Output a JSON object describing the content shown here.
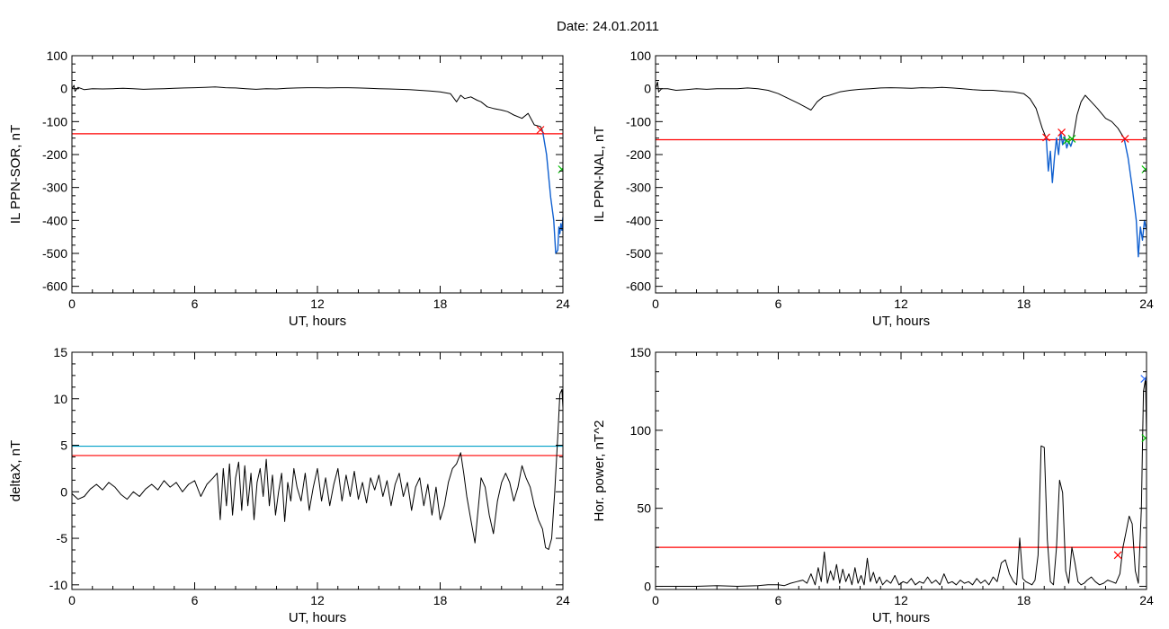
{
  "figure_title": "Date:  24.01.2011",
  "colors": {
    "trace": "#000000",
    "threshold_red": "#ff0000",
    "threshold_teal": "#00a0c8",
    "storm_blue": "#1060d0",
    "marker_red": "#ff0000",
    "marker_green": "#00c000",
    "marker_blue": "#3070ff"
  },
  "chart_data": [
    {
      "type": "line",
      "id": "sor",
      "title": "",
      "xlabel": "UT, hours",
      "ylabel": "IL PPN-SOR, nT",
      "xlim": [
        0,
        24
      ],
      "ylim": [
        -620,
        100
      ],
      "xticks": [
        0,
        6,
        12,
        18,
        24
      ],
      "yticks": [
        100,
        0,
        -100,
        -200,
        -300,
        -400,
        -500,
        -600
      ],
      "hlines": [
        {
          "y": -137,
          "color": "red"
        }
      ],
      "series": [
        {
          "x": [
            0,
            0.1,
            0.15,
            0.3,
            0.6,
            1,
            1.5,
            2,
            2.5,
            3,
            3.5,
            4,
            4.5,
            5,
            5.5,
            6,
            6.5,
            7,
            7.5,
            8,
            8.5,
            9,
            9.5,
            10,
            10.5,
            11,
            11.5,
            12,
            12.5,
            13,
            13.5,
            14,
            14.5,
            15,
            15.5,
            16,
            16.5,
            17,
            17.5,
            18,
            18.5,
            18.8,
            19,
            19.2,
            19.5,
            19.8,
            20,
            20.3,
            20.6,
            21,
            21.3,
            21.6,
            22,
            22.3,
            22.6,
            22.9,
            23.0
          ],
          "y": [
            0,
            10,
            -8,
            4,
            -3,
            0,
            -1,
            0,
            1,
            0,
            -2,
            -1,
            0,
            1,
            2,
            3,
            4,
            5,
            3,
            2,
            0,
            -2,
            0,
            -1,
            1,
            2,
            3,
            3,
            2,
            3,
            3,
            2,
            1,
            0,
            -1,
            -2,
            -3,
            -5,
            -7,
            -10,
            -15,
            -40,
            -20,
            -30,
            -25,
            -35,
            -40,
            -55,
            -60,
            -65,
            -70,
            -80,
            -90,
            -75,
            -110,
            -115,
            -127
          ],
          "color": "black"
        },
        {
          "x": [
            23.0,
            23.2,
            23.4,
            23.55,
            23.65,
            23.75,
            23.8,
            23.85,
            23.9,
            23.95,
            24.0
          ],
          "y": [
            -127,
            -200,
            -330,
            -400,
            -500,
            -490,
            -420,
            -440,
            -410,
            -430,
            -390
          ],
          "color": "blue"
        }
      ],
      "markers": [
        {
          "x": 22.9,
          "y": -125,
          "shape": "x",
          "color": "red"
        },
        {
          "x": 23.95,
          "y": -245,
          "shape": "x",
          "color": "green"
        }
      ]
    },
    {
      "type": "line",
      "id": "nal",
      "title": "",
      "xlabel": "UT, hours",
      "ylabel": "IL PPN-NAL, nT",
      "xlim": [
        0,
        24
      ],
      "ylim": [
        -620,
        100
      ],
      "xticks": [
        0,
        6,
        12,
        18,
        24
      ],
      "yticks": [
        100,
        0,
        -100,
        -200,
        -300,
        -400,
        -500,
        -600
      ],
      "hlines": [
        {
          "y": -155,
          "color": "red"
        }
      ],
      "series": [
        {
          "x": [
            0,
            0.1,
            0.15,
            0.3,
            0.6,
            1,
            1.5,
            2,
            2.5,
            3,
            3.5,
            4,
            4.5,
            5,
            5.5,
            6,
            6.5,
            7,
            7.3,
            7.6,
            7.9,
            8.2,
            8.5,
            9,
            9.5,
            10,
            10.5,
            11,
            11.5,
            12,
            12.5,
            13,
            13.5,
            14,
            14.5,
            15,
            15.5,
            16,
            16.5,
            17,
            17.5,
            18,
            18.3,
            18.6,
            18.9,
            19.1
          ],
          "y": [
            0,
            20,
            -10,
            0,
            0,
            -5,
            -3,
            0,
            -2,
            0,
            0,
            0,
            2,
            0,
            -5,
            -15,
            -30,
            -45,
            -55,
            -65,
            -40,
            -25,
            -20,
            -10,
            -5,
            -2,
            0,
            2,
            3,
            2,
            1,
            3,
            2,
            4,
            2,
            0,
            -3,
            -5,
            -5,
            -8,
            -10,
            -15,
            -30,
            -60,
            -120,
            -150
          ],
          "color": "black"
        },
        {
          "x": [
            19.1,
            19.2,
            19.3,
            19.4,
            19.5,
            19.6,
            19.7,
            19.8,
            19.9,
            20.0,
            20.1,
            20.2,
            20.3,
            20.4
          ],
          "y": [
            -150,
            -250,
            -190,
            -285,
            -210,
            -150,
            -200,
            -130,
            -170,
            -145,
            -180,
            -160,
            -175,
            -155
          ],
          "color": "blue"
        },
        {
          "x": [
            20.4,
            20.6,
            20.8,
            21,
            21.3,
            21.6,
            22,
            22.3,
            22.6,
            22.9
          ],
          "y": [
            -155,
            -80,
            -40,
            -20,
            -40,
            -60,
            -90,
            -100,
            -120,
            -150
          ],
          "color": "black"
        },
        {
          "x": [
            22.9,
            23.1,
            23.3,
            23.5,
            23.6,
            23.7,
            23.8,
            23.9,
            24.0
          ],
          "y": [
            -150,
            -210,
            -300,
            -400,
            -510,
            -420,
            -460,
            -400,
            -430
          ],
          "color": "blue"
        }
      ],
      "markers": [
        {
          "x": 19.1,
          "y": -148,
          "shape": "x",
          "color": "red"
        },
        {
          "x": 19.85,
          "y": -133,
          "shape": "x",
          "color": "red"
        },
        {
          "x": 20.1,
          "y": -158,
          "shape": "x",
          "color": "green"
        },
        {
          "x": 20.35,
          "y": -152,
          "shape": "x",
          "color": "green"
        },
        {
          "x": 22.95,
          "y": -152,
          "shape": "x",
          "color": "red"
        },
        {
          "x": 23.95,
          "y": -245,
          "shape": "x",
          "color": "green"
        }
      ]
    },
    {
      "type": "line",
      "id": "deltax",
      "title": "",
      "xlabel": "UT, hours",
      "ylabel": "deltaX, nT",
      "xlim": [
        0,
        24
      ],
      "ylim": [
        -10.5,
        15
      ],
      "xticks": [
        0,
        6,
        12,
        18,
        24
      ],
      "yticks": [
        15,
        10,
        5,
        0,
        -5,
        -10
      ],
      "hlines": [
        {
          "y": 4.9,
          "color": "teal"
        },
        {
          "y": 3.9,
          "color": "red"
        }
      ],
      "series": [
        {
          "x": [
            0,
            0.3,
            0.6,
            0.9,
            1.2,
            1.5,
            1.8,
            2.1,
            2.4,
            2.7,
            3.0,
            3.3,
            3.6,
            3.9,
            4.2,
            4.5,
            4.8,
            5.1,
            5.4,
            5.7,
            6.0,
            6.3,
            6.6,
            6.9,
            7.1,
            7.25,
            7.4,
            7.55,
            7.7,
            7.85,
            8.0,
            8.15,
            8.3,
            8.45,
            8.6,
            8.75,
            8.9,
            9.05,
            9.2,
            9.35,
            9.5,
            9.65,
            9.8,
            9.95,
            10.1,
            10.25,
            10.4,
            10.55,
            10.7,
            10.85,
            11.0,
            11.2,
            11.4,
            11.6,
            11.8,
            12.0,
            12.2,
            12.4,
            12.6,
            12.8,
            13.0,
            13.2,
            13.4,
            13.6,
            13.8,
            14.0,
            14.2,
            14.4,
            14.6,
            14.8,
            15.0,
            15.2,
            15.4,
            15.6,
            15.8,
            16.0,
            16.2,
            16.4,
            16.6,
            16.8,
            17.0,
            17.2,
            17.4,
            17.6,
            17.8,
            18.0,
            18.2,
            18.4,
            18.6,
            18.8,
            19.0,
            19.15,
            19.3,
            19.5,
            19.7,
            19.85,
            20.0,
            20.2,
            20.4,
            20.6,
            20.8,
            21.0,
            21.2,
            21.4,
            21.6,
            21.8,
            22.0,
            22.2,
            22.4,
            22.6,
            22.8,
            23.0,
            23.15,
            23.3,
            23.45,
            23.6,
            23.75,
            23.85,
            23.95,
            24.0
          ],
          "y": [
            -0.2,
            -0.8,
            -0.5,
            0.3,
            0.8,
            0.2,
            1.0,
            0.5,
            -0.3,
            -0.8,
            0.0,
            -0.5,
            0.3,
            0.8,
            0.2,
            1.2,
            0.5,
            1.0,
            0.0,
            0.8,
            1.2,
            -0.5,
            0.8,
            1.5,
            2.0,
            -3.0,
            2.5,
            -1.5,
            3.0,
            -2.5,
            1.5,
            3.2,
            -2.0,
            2.8,
            -1.5,
            2.0,
            -3.0,
            1.0,
            2.5,
            -0.5,
            3.5,
            -1.5,
            1.8,
            -2.5,
            0.0,
            2.0,
            -3.2,
            1.0,
            -1.0,
            2.5,
            0.5,
            -1.0,
            2.0,
            -2.0,
            0.5,
            2.5,
            -1.0,
            1.5,
            -1.5,
            0.8,
            2.5,
            -1.0,
            1.8,
            -0.5,
            2.2,
            -0.8,
            1.0,
            -1.2,
            1.5,
            0.2,
            1.8,
            -0.5,
            1.2,
            -1.5,
            0.8,
            2.0,
            -0.5,
            1.0,
            -2.0,
            0.5,
            1.5,
            -1.5,
            0.8,
            -2.5,
            0.5,
            -3.0,
            -1.5,
            1.0,
            2.5,
            3.0,
            4.2,
            2.0,
            -0.5,
            -3.0,
            -5.5,
            -2.0,
            1.5,
            0.5,
            -2.5,
            -4.5,
            -1.0,
            1.0,
            2.0,
            1.0,
            -1.0,
            0.5,
            2.8,
            1.5,
            0.5,
            -1.5,
            -3.0,
            -4.0,
            -6.0,
            -6.2,
            -5.0,
            0.0,
            6.0,
            10.5,
            11.0,
            9.0
          ],
          "color": "black"
        }
      ],
      "markers": []
    },
    {
      "type": "line",
      "id": "horpower",
      "title": "",
      "xlabel": "UT, hours",
      "ylabel": "Hor. power, nT^2",
      "xlim": [
        0,
        24
      ],
      "ylim": [
        -2,
        150
      ],
      "xticks": [
        0,
        6,
        12,
        18,
        24
      ],
      "yticks": [
        150,
        100,
        50,
        0
      ],
      "hlines": [
        {
          "y": 25,
          "color": "red"
        }
      ],
      "series": [
        {
          "x": [
            0,
            1,
            2,
            3,
            4,
            5,
            5.5,
            6,
            6.3,
            6.6,
            6.9,
            7.2,
            7.4,
            7.6,
            7.8,
            7.95,
            8.1,
            8.25,
            8.4,
            8.55,
            8.7,
            8.85,
            9.0,
            9.15,
            9.3,
            9.45,
            9.6,
            9.75,
            9.9,
            10.05,
            10.2,
            10.35,
            10.5,
            10.65,
            10.8,
            10.95,
            11.1,
            11.3,
            11.5,
            11.7,
            11.9,
            12.1,
            12.3,
            12.5,
            12.7,
            12.9,
            13.1,
            13.3,
            13.5,
            13.7,
            13.9,
            14.1,
            14.3,
            14.5,
            14.7,
            14.9,
            15.1,
            15.3,
            15.5,
            15.7,
            15.9,
            16.1,
            16.3,
            16.5,
            16.7,
            16.9,
            17.1,
            17.3,
            17.5,
            17.65,
            17.8,
            17.95,
            18.1,
            18.25,
            18.4,
            18.55,
            18.7,
            18.85,
            19.0,
            19.15,
            19.3,
            19.45,
            19.6,
            19.75,
            19.9,
            20.05,
            20.2,
            20.35,
            20.5,
            20.65,
            20.8,
            20.95,
            21.1,
            21.3,
            21.5,
            21.7,
            21.9,
            22.1,
            22.3,
            22.5,
            22.7,
            22.85,
            23.0,
            23.15,
            23.3,
            23.45,
            23.6,
            23.75,
            23.85,
            23.95,
            24.0
          ],
          "y": [
            0,
            0,
            0,
            0.5,
            0,
            0.5,
            1,
            1,
            0.5,
            2,
            3,
            4,
            2,
            8,
            1,
            12,
            3,
            22,
            2,
            10,
            4,
            14,
            2,
            11,
            3,
            8,
            1,
            12,
            2,
            7,
            1,
            18,
            3,
            9,
            2,
            6,
            1,
            4,
            2,
            7,
            1,
            3,
            2,
            5,
            1,
            3,
            2,
            6,
            2,
            4,
            1,
            8,
            2,
            3,
            1,
            4,
            2,
            3,
            1,
            5,
            2,
            4,
            1,
            6,
            3,
            15,
            17,
            8,
            3,
            1,
            31,
            5,
            3,
            2,
            1,
            4,
            20,
            90,
            89,
            30,
            3,
            1,
            25,
            68,
            60,
            10,
            2,
            25,
            15,
            3,
            1,
            2,
            4,
            6,
            3,
            1,
            2,
            4,
            3,
            2,
            8,
            25,
            35,
            45,
            40,
            10,
            2,
            50,
            125,
            133,
            95
          ],
          "color": "black"
        }
      ],
      "markers": [
        {
          "x": 22.6,
          "y": 20,
          "shape": "x",
          "color": "red"
        },
        {
          "x": 23.9,
          "y": 133,
          "shape": "x",
          "color": "blue"
        },
        {
          "x": 23.95,
          "y": 95,
          "shape": "x",
          "color": "green"
        }
      ]
    }
  ]
}
